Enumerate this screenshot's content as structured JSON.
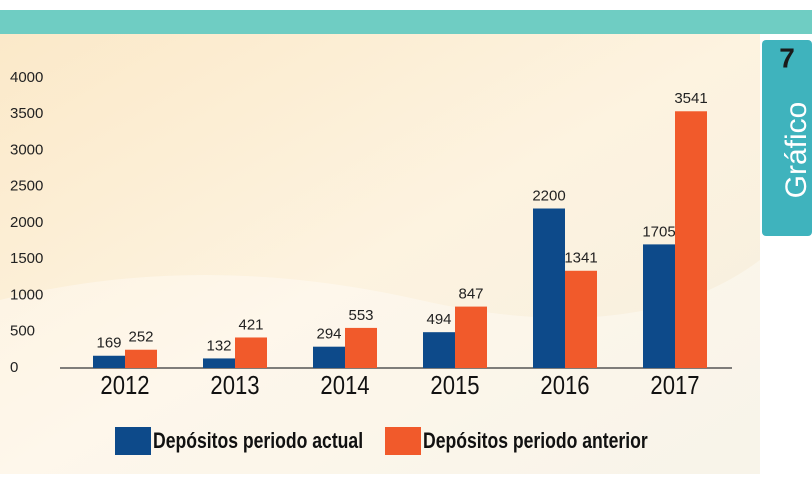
{
  "badge": {
    "number": "7",
    "label": "Gráfico"
  },
  "chart_data": {
    "type": "bar",
    "categories": [
      "2012",
      "2013",
      "2014",
      "2015",
      "2016",
      "2017"
    ],
    "series": [
      {
        "name": "Depósitos periodo actual",
        "color": "#0d4a8a",
        "values": [
          169,
          132,
          294,
          494,
          2200,
          1705
        ]
      },
      {
        "name": "Depósitos periodo anterior",
        "color": "#f15a2b",
        "values": [
          252,
          421,
          553,
          847,
          1341,
          3541
        ]
      }
    ],
    "ylim": [
      0,
      4000
    ],
    "yticks": [
      0,
      500,
      1000,
      1500,
      2000,
      2500,
      3000,
      3500,
      4000
    ],
    "grid": false
  }
}
